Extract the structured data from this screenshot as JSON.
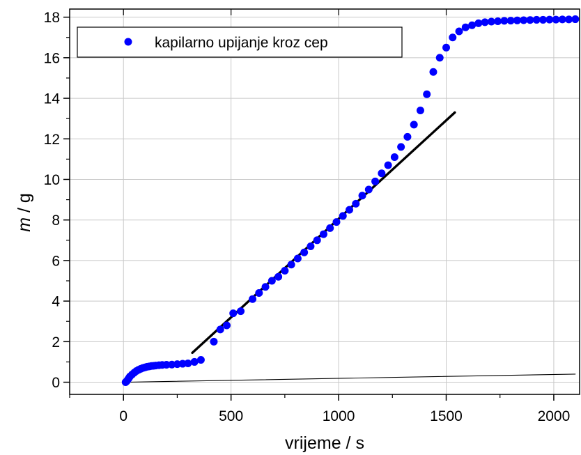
{
  "chart_data": {
    "type": "scatter",
    "xlabel": "vrijeme / s",
    "ylabel_italic": "m",
    "ylabel_rest": " / g",
    "xlim": [
      -250,
      2120
    ],
    "ylim": [
      -0.6,
      18.4
    ],
    "xticks": [
      0,
      500,
      1000,
      1500,
      2000
    ],
    "yticks": [
      0,
      2,
      4,
      6,
      8,
      10,
      12,
      14,
      16,
      18
    ],
    "grid": true,
    "legend_position": "top-left",
    "legend": [
      "kapilarno upijanje kroz cep"
    ],
    "marker_color": "#0000ff",
    "series": [
      {
        "name": "kapilarno upijanje kroz cep",
        "x": [
          10,
          15,
          20,
          25,
          30,
          40,
          50,
          60,
          70,
          80,
          90,
          100,
          110,
          120,
          130,
          140,
          150,
          165,
          180,
          200,
          225,
          250,
          275,
          300,
          330,
          360,
          420,
          450,
          480,
          510,
          545,
          600,
          630,
          660,
          690,
          720,
          750,
          780,
          810,
          840,
          870,
          900,
          930,
          960,
          990,
          1020,
          1050,
          1080,
          1110,
          1140,
          1170,
          1200,
          1230,
          1260,
          1290,
          1320,
          1350,
          1380,
          1410,
          1440,
          1470,
          1500,
          1530,
          1560,
          1590,
          1620,
          1650,
          1680,
          1710,
          1740,
          1770,
          1800,
          1830,
          1860,
          1890,
          1920,
          1950,
          1980,
          2010,
          2040,
          2070,
          2100
        ],
        "y": [
          0.0,
          0.05,
          0.12,
          0.2,
          0.28,
          0.38,
          0.47,
          0.55,
          0.61,
          0.66,
          0.7,
          0.73,
          0.76,
          0.78,
          0.8,
          0.81,
          0.82,
          0.84,
          0.85,
          0.86,
          0.87,
          0.89,
          0.91,
          0.93,
          1.0,
          1.1,
          2.0,
          2.6,
          2.8,
          3.4,
          3.5,
          4.1,
          4.4,
          4.7,
          5.0,
          5.2,
          5.5,
          5.8,
          6.1,
          6.4,
          6.7,
          7.0,
          7.3,
          7.6,
          7.9,
          8.2,
          8.5,
          8.8,
          9.2,
          9.5,
          9.9,
          10.3,
          10.7,
          11.1,
          11.6,
          12.1,
          12.7,
          13.4,
          14.2,
          15.3,
          16.0,
          16.5,
          17.0,
          17.3,
          17.5,
          17.6,
          17.7,
          17.75,
          17.78,
          17.8,
          17.82,
          17.83,
          17.84,
          17.85,
          17.86,
          17.87,
          17.87,
          17.88,
          17.88,
          17.89,
          17.89,
          17.9
        ]
      }
    ],
    "fit_lines": [
      {
        "x": [
          320,
          1540
        ],
        "y": [
          1.45,
          13.3
        ],
        "color": "#000000",
        "style": "thick"
      },
      {
        "x": [
          10,
          2100
        ],
        "y": [
          0.0,
          0.4
        ],
        "color": "#000000",
        "style": "thin"
      }
    ]
  }
}
